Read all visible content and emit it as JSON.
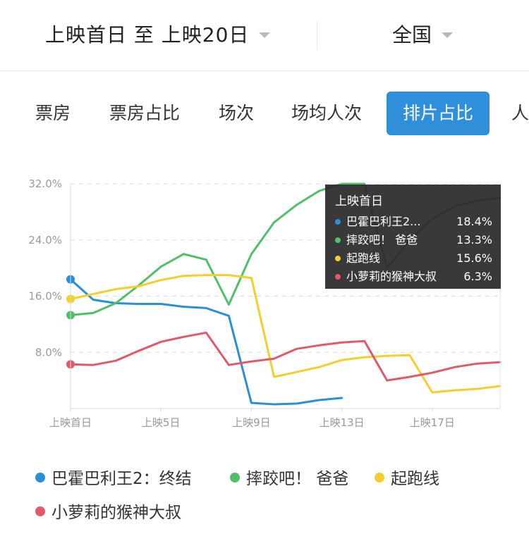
{
  "filters": {
    "date_range": "上映首日 至 上映20日",
    "region": "全国"
  },
  "tabs": [
    "票房",
    "票房占比",
    "场次",
    "场均人次",
    "排片占比",
    "人"
  ],
  "active_tab": 4,
  "chart_data": {
    "type": "line",
    "y_tick_labels": [
      "32.0%",
      "24.0%",
      "16.0%",
      "8.0%"
    ],
    "y_ticks": [
      32,
      24,
      16,
      8
    ],
    "ylim": [
      0,
      32
    ],
    "x_tick_labels": [
      "上映首日",
      "上映5日",
      "上映9日",
      "上映13日",
      "上映17日"
    ],
    "x_tick_positions": [
      1,
      5,
      9,
      13,
      17
    ],
    "xlim": [
      1,
      20
    ],
    "grid": "horizontal dashed",
    "series": [
      {
        "name": "巴霍巴利王2：终结",
        "color": "#2b8fd6",
        "marker_first": true,
        "points": [
          [
            1,
            18.4
          ],
          [
            2,
            15.5
          ],
          [
            3,
            15
          ],
          [
            4,
            14.9
          ],
          [
            5,
            14.9
          ],
          [
            6,
            14.5
          ],
          [
            7,
            14.3
          ],
          [
            8,
            13.2
          ],
          [
            9,
            0.8
          ],
          [
            10,
            0.6
          ],
          [
            11,
            0.7
          ],
          [
            12,
            1.2
          ],
          [
            13,
            1.5
          ]
        ]
      },
      {
        "name": "摔跤吧！爸爸",
        "color": "#4fbf6b",
        "marker_first": true,
        "points": [
          [
            1,
            13.3
          ],
          [
            2,
            13.6
          ],
          [
            3,
            15
          ],
          [
            4,
            17.5
          ],
          [
            5,
            20.2
          ],
          [
            6,
            22
          ],
          [
            7,
            21.2
          ],
          [
            8,
            14.8
          ],
          [
            9,
            22
          ],
          [
            10,
            26.5
          ],
          [
            11,
            29
          ],
          [
            12,
            31
          ],
          [
            13,
            32
          ],
          [
            14,
            32
          ],
          [
            15,
            20
          ],
          [
            16,
            24
          ],
          [
            17,
            27
          ],
          [
            18,
            28.8
          ],
          [
            19,
            29.6
          ],
          [
            20,
            30
          ]
        ]
      },
      {
        "name": "起跑线",
        "color": "#f4ce2d",
        "marker_first": true,
        "points": [
          [
            1,
            15.6
          ],
          [
            2,
            16.3
          ],
          [
            3,
            17
          ],
          [
            4,
            17.4
          ],
          [
            5,
            18.3
          ],
          [
            6,
            18.9
          ],
          [
            7,
            19
          ],
          [
            8,
            19
          ],
          [
            9,
            18.6
          ],
          [
            10,
            4.5
          ],
          [
            11,
            5.2
          ],
          [
            12,
            5.9
          ],
          [
            13,
            6.9
          ],
          [
            14,
            7.3
          ],
          [
            15,
            7.5
          ],
          [
            16,
            7.6
          ],
          [
            17,
            2.3
          ],
          [
            18,
            2.6
          ],
          [
            19,
            2.8
          ],
          [
            20,
            3.2
          ]
        ]
      },
      {
        "name": "小萝莉的猴神大叔",
        "color": "#e05a6a",
        "marker_first": true,
        "points": [
          [
            1,
            6.3
          ],
          [
            2,
            6.2
          ],
          [
            3,
            6.8
          ],
          [
            4,
            8.2
          ],
          [
            5,
            9.5
          ],
          [
            6,
            10.2
          ],
          [
            7,
            10.8
          ],
          [
            8,
            6.2
          ],
          [
            9,
            6.7
          ],
          [
            10,
            7.1
          ],
          [
            11,
            8.5
          ],
          [
            12,
            9
          ],
          [
            13,
            9.4
          ],
          [
            14,
            9.6
          ],
          [
            15,
            4
          ],
          [
            16,
            4.5
          ],
          [
            17,
            5.1
          ],
          [
            18,
            5.9
          ],
          [
            19,
            6.4
          ],
          [
            20,
            6.6
          ]
        ]
      }
    ]
  },
  "tooltip": {
    "title": "上映首日",
    "rows": [
      {
        "name": "巴霍巴利王2...",
        "value": "18.4%",
        "color": "#2b8fd6"
      },
      {
        "name": "摔跤吧！ 爸爸",
        "value": "13.3%",
        "color": "#4fbf6b"
      },
      {
        "name": "起跑线",
        "value": "15.6%",
        "color": "#f4ce2d"
      },
      {
        "name": "小萝莉的猴神大叔",
        "value": "6.3%",
        "color": "#e05a6a"
      }
    ]
  },
  "legend": [
    {
      "label": "巴霍巴利王2：终结",
      "color": "#2b8fd6"
    },
    {
      "label": "摔跤吧！ 爸爸",
      "color": "#4fbf6b"
    },
    {
      "label": "起跑线",
      "color": "#f4ce2d"
    },
    {
      "label": "小萝莉的猴神大叔",
      "color": "#e05a6a"
    }
  ]
}
